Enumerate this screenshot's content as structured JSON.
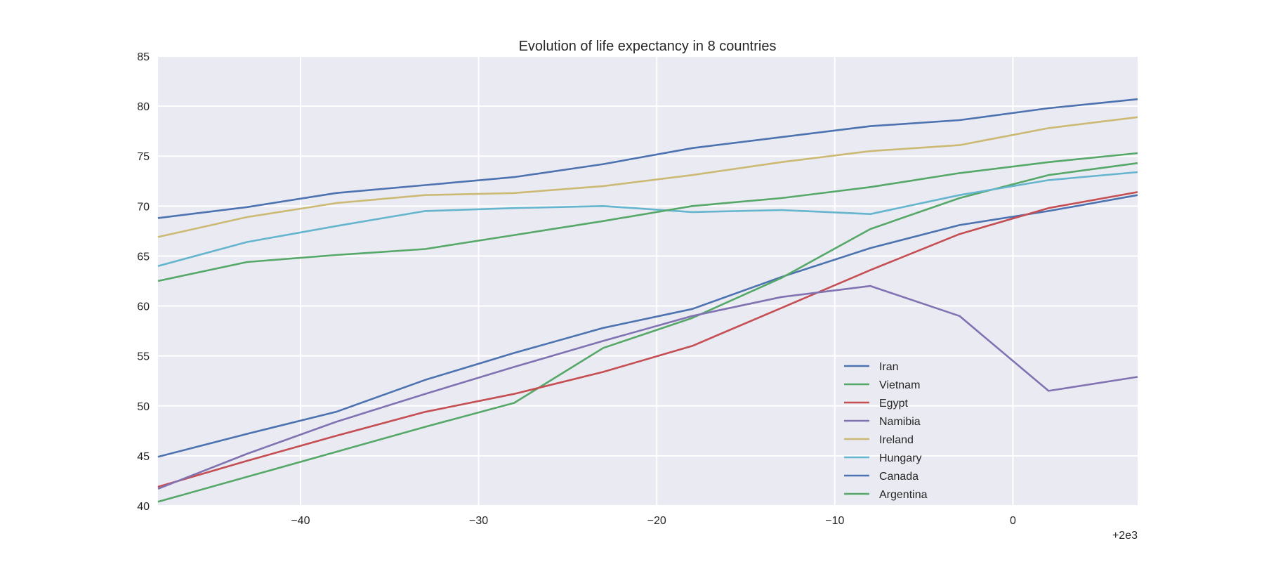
{
  "chart_data": {
    "type": "line",
    "title": "Evolution of life expectancy in 8 countries",
    "xlabel": "",
    "ylabel": "",
    "x_offset_label": "+2e3",
    "xlim": [
      -48,
      7
    ],
    "ylim": [
      40,
      85
    ],
    "xticks": [
      -40,
      -30,
      -20,
      -10,
      0
    ],
    "xtick_labels": [
      "−40",
      "−30",
      "−20",
      "−10",
      "0"
    ],
    "yticks": [
      40,
      45,
      50,
      55,
      60,
      65,
      70,
      75,
      80,
      85
    ],
    "ytick_labels": [
      "40",
      "45",
      "50",
      "55",
      "60",
      "65",
      "70",
      "75",
      "80",
      "85"
    ],
    "grid": true,
    "legend_position": "lower-right",
    "background_color": "#EAEAF2",
    "x": [
      -48,
      -43,
      -38,
      -33,
      -28,
      -23,
      -18,
      -13,
      -8,
      -3,
      2,
      7
    ],
    "series": [
      {
        "name": "Iran",
        "color": "#4C72B0",
        "values": [
          44.9,
          47.2,
          49.4,
          52.6,
          55.3,
          57.8,
          59.7,
          62.9,
          65.8,
          68.1,
          69.5,
          71.1
        ]
      },
      {
        "name": "Vietnam",
        "color": "#55A868",
        "values": [
          40.4,
          42.9,
          45.4,
          47.9,
          50.3,
          55.8,
          58.8,
          62.8,
          67.7,
          70.8,
          73.1,
          74.3
        ]
      },
      {
        "name": "Egypt",
        "color": "#C44E52",
        "values": [
          41.9,
          44.5,
          47.0,
          49.4,
          51.2,
          53.4,
          56.0,
          59.8,
          63.6,
          67.2,
          69.8,
          71.4
        ]
      },
      {
        "name": "Namibia",
        "color": "#8172B2",
        "values": [
          41.7,
          45.2,
          48.4,
          51.2,
          53.9,
          56.5,
          59.0,
          60.9,
          62.0,
          59.0,
          51.5,
          52.9
        ]
      },
      {
        "name": "Ireland",
        "color": "#CCB974",
        "values": [
          66.9,
          68.9,
          70.3,
          71.1,
          71.3,
          72.0,
          73.1,
          74.4,
          75.5,
          76.1,
          77.8,
          78.9
        ]
      },
      {
        "name": "Hungary",
        "color": "#64B5CD",
        "values": [
          64.0,
          66.4,
          68.0,
          69.5,
          69.8,
          70.0,
          69.4,
          69.6,
          69.2,
          71.1,
          72.6,
          73.4
        ]
      },
      {
        "name": "Canada",
        "color": "#4C72B0",
        "values": [
          68.8,
          69.9,
          71.3,
          72.1,
          72.9,
          74.2,
          75.8,
          76.9,
          78.0,
          78.6,
          79.8,
          80.7
        ]
      },
      {
        "name": "Argentina",
        "color": "#55A868",
        "values": [
          62.5,
          64.4,
          65.1,
          65.7,
          67.1,
          68.5,
          70.0,
          70.8,
          71.9,
          73.3,
          74.4,
          75.3
        ]
      }
    ]
  }
}
